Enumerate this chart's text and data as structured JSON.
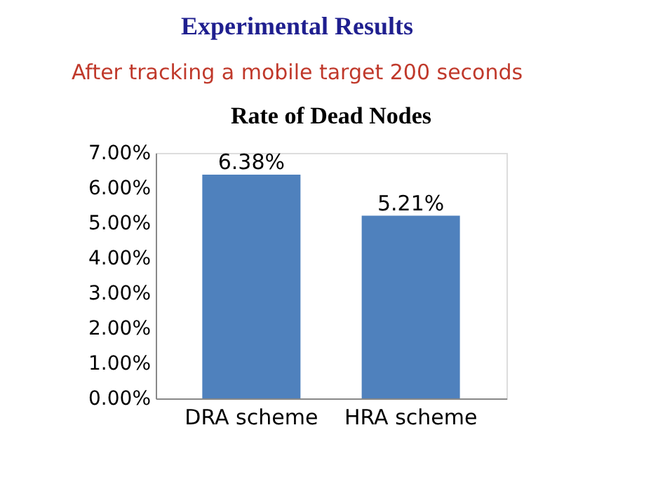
{
  "chart_data": {
    "type": "bar",
    "title": "Experimental Results",
    "subtitle": "After tracking a mobile target 200 seconds",
    "annotations": [
      "Rate of Dead Nodes"
    ],
    "categories": [
      "DRA scheme",
      "HRA scheme"
    ],
    "series": [
      {
        "color": "#4f81bd",
        "values": [
          6.38,
          5.21
        ]
      }
    ],
    "value_labels": [
      "6.38%",
      "5.21%"
    ],
    "ylim": [
      0,
      7
    ],
    "yticks": [
      {
        "value": 0,
        "label": "0.00%"
      },
      {
        "value": 1,
        "label": "1.00%"
      },
      {
        "value": 2,
        "label": "2.00%"
      },
      {
        "value": 3,
        "label": "3.00%"
      },
      {
        "value": 4,
        "label": "4.00%"
      },
      {
        "value": 5,
        "label": "5.00%"
      },
      {
        "value": 6,
        "label": "6.00%"
      },
      {
        "value": 7,
        "label": "7.00%"
      }
    ],
    "grid": false
  }
}
